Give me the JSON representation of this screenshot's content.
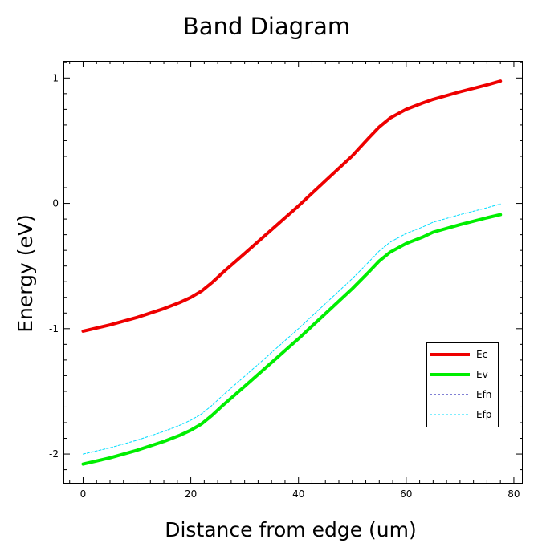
{
  "chart_data": {
    "type": "line",
    "title": "Band Diagram",
    "xlabel": "Distance from edge (um)",
    "ylabel": "Energy (eV)",
    "xlim": [
      -3.5,
      81.5
    ],
    "ylim": [
      -2.23,
      1.13
    ],
    "x_ticks": [
      0,
      20,
      40,
      60,
      80
    ],
    "x_tick_labels": [
      "0",
      "20",
      "40",
      "60",
      "80"
    ],
    "y_ticks": [
      -2,
      -1,
      0,
      1
    ],
    "y_tick_labels": [
      "-2",
      "-1",
      "0",
      "1"
    ],
    "grid": false,
    "legend_position": "lower-right",
    "series": [
      {
        "name": "Ec",
        "color": "#ee0000",
        "style": "solid-thick",
        "x": [
          0,
          5,
          10,
          15,
          18,
          20,
          22,
          24,
          26,
          30,
          35,
          40,
          45,
          50,
          53,
          55,
          57,
          60,
          63,
          65,
          70,
          75,
          77.5
        ],
        "y": [
          -1.02,
          -0.97,
          -0.91,
          -0.84,
          -0.79,
          -0.75,
          -0.7,
          -0.63,
          -0.55,
          -0.4,
          -0.21,
          -0.02,
          0.18,
          0.38,
          0.52,
          0.61,
          0.68,
          0.75,
          0.8,
          0.83,
          0.89,
          0.945,
          0.975
        ]
      },
      {
        "name": "Ev",
        "color": "#00ee00",
        "style": "solid-thick",
        "x": [
          0,
          5,
          10,
          15,
          18,
          20,
          22,
          24,
          26,
          30,
          35,
          40,
          45,
          50,
          53,
          55,
          57,
          60,
          63,
          65,
          70,
          75,
          77.5
        ],
        "y": [
          -2.08,
          -2.03,
          -1.97,
          -1.9,
          -1.85,
          -1.81,
          -1.76,
          -1.69,
          -1.61,
          -1.46,
          -1.27,
          -1.08,
          -0.88,
          -0.68,
          -0.55,
          -0.46,
          -0.39,
          -0.32,
          -0.27,
          -0.23,
          -0.17,
          -0.115,
          -0.09
        ]
      },
      {
        "name": "Efn",
        "color": "#0000aa",
        "style": "dashed-thin",
        "x": [],
        "y": []
      },
      {
        "name": "Efp",
        "color": "#00ddff",
        "style": "dashed-thin",
        "x": [
          0,
          5,
          10,
          15,
          18,
          20,
          22,
          24,
          26,
          30,
          35,
          40,
          45,
          50,
          53,
          55,
          57,
          60,
          63,
          65,
          70,
          75,
          77.5
        ],
        "y": [
          -2.0,
          -1.95,
          -1.89,
          -1.82,
          -1.77,
          -1.73,
          -1.68,
          -1.61,
          -1.53,
          -1.38,
          -1.19,
          -1.0,
          -0.8,
          -0.6,
          -0.47,
          -0.38,
          -0.31,
          -0.24,
          -0.19,
          -0.15,
          -0.09,
          -0.035,
          -0.005
        ]
      }
    ]
  }
}
